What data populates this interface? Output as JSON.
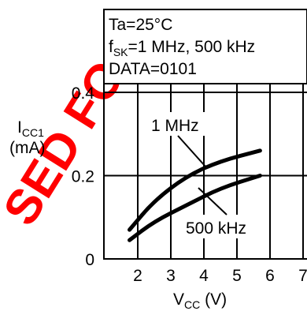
{
  "watermark": {
    "text": "SED FO",
    "color": "#ff0000"
  },
  "chart_data": {
    "type": "line",
    "conditions": [
      "Ta=25°C",
      "f",
      "SK",
      "=1 MHz, 500 kHz",
      "DATA=0101"
    ],
    "ylabel": {
      "main": "I",
      "sub": "CC1",
      "unit": "(mA)"
    },
    "xlabel": {
      "main": "V",
      "sub": "CC",
      "unit": " (V)"
    },
    "xlim": [
      1,
      7
    ],
    "ylim": [
      0,
      0.4
    ],
    "x_ticks": [
      "2",
      "3",
      "4",
      "5",
      "6",
      "7"
    ],
    "y_ticks": [
      "0",
      "0.2",
      "0.4"
    ],
    "grid": true,
    "series": [
      {
        "name": "1 MHz",
        "points": [
          [
            1.75,
            0.07
          ],
          [
            2.5,
            0.14
          ],
          [
            3.5,
            0.2
          ],
          [
            4.5,
            0.235
          ],
          [
            5.7,
            0.26
          ]
        ]
      },
      {
        "name": "500 kHz",
        "points": [
          [
            1.75,
            0.045
          ],
          [
            2.5,
            0.09
          ],
          [
            3.5,
            0.13
          ],
          [
            4.5,
            0.17
          ],
          [
            5.7,
            0.2
          ]
        ]
      }
    ],
    "line_color": "#000000"
  }
}
